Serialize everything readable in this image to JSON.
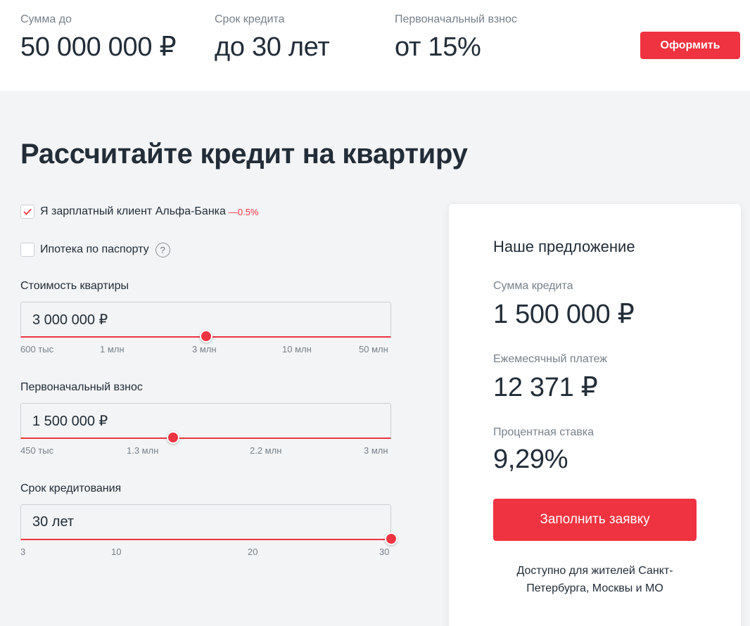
{
  "top_bar": {
    "stats": [
      {
        "label": "Сумма до",
        "value": "50 000 000 ₽"
      },
      {
        "label": "Срок кредита",
        "value": "до 30 лет"
      },
      {
        "label": "Первоначальный взнос",
        "value": "от 15%"
      }
    ],
    "button": "Оформить"
  },
  "heading": "Рассчитайте кредит на квартиру",
  "options": {
    "salary_client": {
      "label": "Я зарплатный клиент Альфа-Банка",
      "discount": "—0.5%",
      "checked": true
    },
    "passport_mortgage": {
      "label": "Ипотека по паспорту",
      "checked": false,
      "help": "?"
    }
  },
  "fields": {
    "price": {
      "label": "Стоимость квартиры",
      "value": "3 000 000 ₽",
      "slider_position_pct": 50,
      "ticks": [
        "600 тыс",
        "1 млн",
        "3 млн",
        "10 млн",
        "50 млн"
      ]
    },
    "down_payment": {
      "label": "Первоначальный взнос",
      "value": "1 500 000 ₽",
      "slider_position_pct": 41,
      "ticks": [
        "450 тыс",
        "1.3 млн",
        "2.2 млн",
        "3 млн"
      ]
    },
    "term": {
      "label": "Срок кредитования",
      "value": "30 лет",
      "slider_position_pct": 100,
      "ticks": [
        "3",
        "10",
        "20",
        "30"
      ]
    }
  },
  "offer": {
    "title": "Наше предложение",
    "loan_label": "Сумма кредита",
    "loan_value": "1 500 000 ₽",
    "payment_label": "Ежемесячный платеж",
    "payment_value": "12 371 ₽",
    "rate_label": "Процентная ставка",
    "rate_value": "9,29%",
    "button": "Заполнить заявку",
    "note": "Доступно для жителей Санкт-Петербурга, Москвы и МО"
  },
  "colors": {
    "accent": "#ef3340",
    "text": "#222d38",
    "muted": "#77808a",
    "background": "#f3f4f5"
  },
  "icons": {
    "checked": "checkmark-icon",
    "help": "question-icon"
  }
}
